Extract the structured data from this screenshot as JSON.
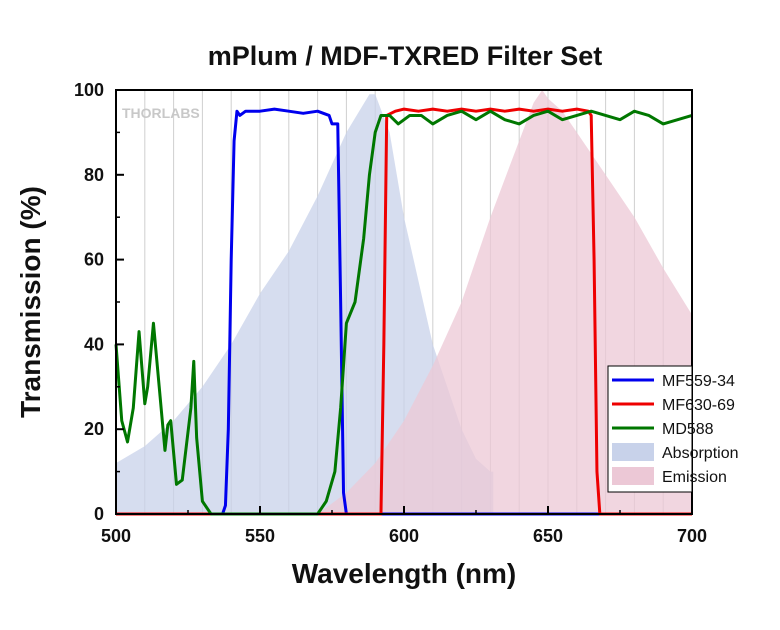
{
  "chart_data": {
    "type": "line",
    "title": "mPlum / MDF-TXRED Filter Set",
    "xlabel": "Wavelength (nm)",
    "ylabel": "Transmission (%)",
    "xlim": [
      500,
      700
    ],
    "ylim": [
      0,
      100
    ],
    "x_ticks": [
      500,
      550,
      600,
      650,
      700
    ],
    "y_ticks": [
      0,
      20,
      40,
      60,
      80,
      100
    ],
    "grid": true,
    "legend_position": "bottom-right",
    "watermark": "THORLABS",
    "series": [
      {
        "name": "MF559-34",
        "kind": "line",
        "color": "#0000ee",
        "points": [
          [
            500,
            0
          ],
          [
            537,
            0
          ],
          [
            538,
            2
          ],
          [
            539,
            20
          ],
          [
            540,
            60
          ],
          [
            541,
            88
          ],
          [
            542,
            95
          ],
          [
            543,
            94
          ],
          [
            545,
            95
          ],
          [
            550,
            95
          ],
          [
            555,
            95.5
          ],
          [
            560,
            95
          ],
          [
            565,
            94.5
          ],
          [
            570,
            95
          ],
          [
            574,
            94
          ],
          [
            575,
            92
          ],
          [
            577,
            92
          ],
          [
            578,
            50
          ],
          [
            579,
            5
          ],
          [
            580,
            0
          ],
          [
            700,
            0
          ]
        ]
      },
      {
        "name": "MF630-69",
        "kind": "line",
        "color": "#ee0000",
        "points": [
          [
            500,
            0
          ],
          [
            592,
            0
          ],
          [
            593,
            40
          ],
          [
            594,
            94
          ],
          [
            597,
            95
          ],
          [
            600,
            95.5
          ],
          [
            605,
            95
          ],
          [
            610,
            95.5
          ],
          [
            615,
            95
          ],
          [
            620,
            95.5
          ],
          [
            625,
            95
          ],
          [
            630,
            95.5
          ],
          [
            635,
            95
          ],
          [
            640,
            95.5
          ],
          [
            645,
            95
          ],
          [
            650,
            95.5
          ],
          [
            655,
            95
          ],
          [
            660,
            95.5
          ],
          [
            664,
            95
          ],
          [
            665,
            94
          ],
          [
            666,
            60
          ],
          [
            667,
            10
          ],
          [
            668,
            0
          ],
          [
            700,
            0
          ]
        ]
      },
      {
        "name": "MD588",
        "kind": "line",
        "color": "#007700",
        "points": [
          [
            500,
            40
          ],
          [
            502,
            22
          ],
          [
            504,
            17
          ],
          [
            506,
            25
          ],
          [
            508,
            43
          ],
          [
            510,
            26
          ],
          [
            511,
            30
          ],
          [
            513,
            45
          ],
          [
            515,
            30
          ],
          [
            517,
            15
          ],
          [
            518,
            21
          ],
          [
            519,
            22
          ],
          [
            521,
            7
          ],
          [
            523,
            8
          ],
          [
            526,
            25
          ],
          [
            527,
            36
          ],
          [
            528,
            18
          ],
          [
            530,
            3
          ],
          [
            533,
            0
          ],
          [
            570,
            0
          ],
          [
            573,
            3
          ],
          [
            576,
            10
          ],
          [
            578,
            25
          ],
          [
            580,
            45
          ],
          [
            583,
            50
          ],
          [
            586,
            65
          ],
          [
            588,
            80
          ],
          [
            590,
            90
          ],
          [
            592,
            94
          ],
          [
            595,
            94
          ],
          [
            598,
            92
          ],
          [
            602,
            94
          ],
          [
            606,
            94
          ],
          [
            610,
            92
          ],
          [
            615,
            94
          ],
          [
            620,
            95
          ],
          [
            625,
            93
          ],
          [
            630,
            95
          ],
          [
            635,
            93
          ],
          [
            640,
            92
          ],
          [
            645,
            94
          ],
          [
            650,
            95
          ],
          [
            655,
            93
          ],
          [
            660,
            94
          ],
          [
            665,
            95
          ],
          [
            670,
            94
          ],
          [
            675,
            93
          ],
          [
            680,
            95
          ],
          [
            685,
            94
          ],
          [
            690,
            92
          ],
          [
            695,
            93
          ],
          [
            700,
            94
          ]
        ]
      },
      {
        "name": "Absorption",
        "kind": "area",
        "color": "#c8d2ea",
        "points": [
          [
            500,
            12
          ],
          [
            510,
            16
          ],
          [
            520,
            22
          ],
          [
            530,
            30
          ],
          [
            540,
            40
          ],
          [
            550,
            52
          ],
          [
            560,
            62
          ],
          [
            570,
            75
          ],
          [
            580,
            90
          ],
          [
            588,
            99
          ],
          [
            590,
            99
          ],
          [
            595,
            90
          ],
          [
            600,
            70
          ],
          [
            605,
            55
          ],
          [
            610,
            40
          ],
          [
            615,
            30
          ],
          [
            620,
            20
          ],
          [
            625,
            13
          ],
          [
            630,
            10
          ],
          [
            631,
            10
          ],
          [
            631,
            0
          ]
        ]
      },
      {
        "name": "Emission",
        "kind": "area",
        "color": "#ecc8d6",
        "points": [
          [
            570,
            0
          ],
          [
            580,
            5
          ],
          [
            590,
            12
          ],
          [
            600,
            22
          ],
          [
            610,
            35
          ],
          [
            620,
            50
          ],
          [
            630,
            70
          ],
          [
            640,
            88
          ],
          [
            645,
            97
          ],
          [
            648,
            100
          ],
          [
            650,
            98
          ],
          [
            655,
            95
          ],
          [
            660,
            90
          ],
          [
            670,
            80
          ],
          [
            680,
            70
          ],
          [
            690,
            58
          ],
          [
            700,
            47
          ]
        ]
      }
    ]
  }
}
